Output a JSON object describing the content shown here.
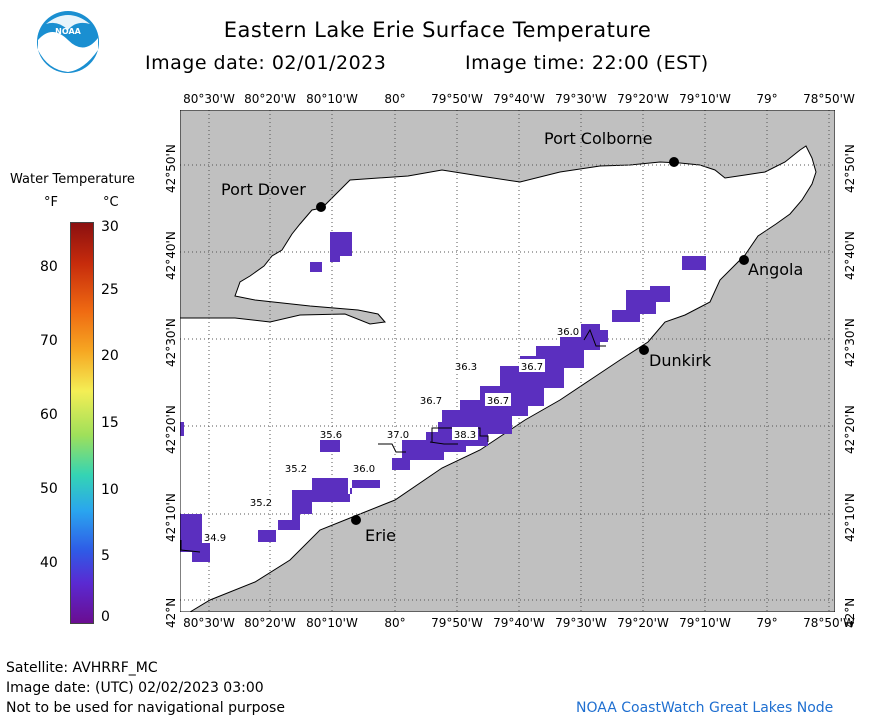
{
  "header": {
    "title": "Eastern Lake Erie Surface Temperature",
    "image_date": "Image date: 02/01/2023",
    "image_time": "Image time: 22:00 (EST)"
  },
  "logo": {
    "text": "NOAA",
    "color": "#1a8fd1"
  },
  "legend": {
    "title": "Water Temperature",
    "unit_f": "°F",
    "unit_c": "°C",
    "f_ticks": [
      "80",
      "70",
      "60",
      "50",
      "40"
    ],
    "c_ticks": [
      "30",
      "25",
      "20",
      "15",
      "10",
      "5",
      "0"
    ]
  },
  "axes": {
    "lon_labels": [
      "80°30'W",
      "80°20'W",
      "80°10'W",
      "80°",
      "79°50'W",
      "79°40'W",
      "79°30'W",
      "79°20'W",
      "79°10'W",
      "79°",
      "78°50'W"
    ],
    "lat_labels": [
      "42°50'N",
      "42°40'N",
      "42°30'N",
      "42°20'N",
      "42°10'N",
      "42°N"
    ]
  },
  "places": {
    "port_colborne": "Port Colborne",
    "port_dover": "Port Dover",
    "angola": "Angola",
    "dunkirk": "Dunkirk",
    "erie": "Erie"
  },
  "temperature_labels": [
    "36.0",
    "36.3",
    "36.7",
    "36.7",
    "36.7",
    "35.6",
    "37.0",
    "38.3",
    "35.2",
    "36.0",
    "35.2",
    "34.9"
  ],
  "colors": {
    "land": "#c0c0c0",
    "water": "#ffffff",
    "cold_water": "#5b2fbf",
    "footer_link": "#1f6fd0"
  },
  "footer": {
    "satellite": "Satellite: AVHRRF_MC",
    "utc_date": "Image date: (UTC) 02/02/2023  03:00",
    "disclaimer": "Not to be used for navigational purpose",
    "credit": "NOAA CoastWatch Great Lakes Node"
  }
}
